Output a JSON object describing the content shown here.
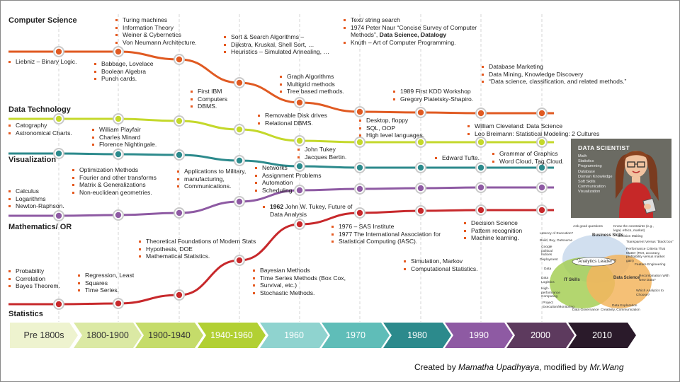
{
  "rows": {
    "computer_science": "Computer Science",
    "data_technology": "Data Technology",
    "visualization": "Visualization",
    "mathematics": "Mathematics/ OR",
    "statistics": "Statistics"
  },
  "eras": [
    "Pre 1800s",
    "1800-1900",
    "1900-1940",
    "1940-1960",
    "1960",
    "1970",
    "1980",
    "1990",
    "2000",
    "2010"
  ],
  "colors": {
    "computer_science": "#e05a22",
    "data_technology": "#c4d82b",
    "visualization": "#2c8a8c",
    "mathematics": "#8e5aa3",
    "statistics": "#c7282b",
    "bullet": "#e55a21"
  },
  "notes": {
    "cs_pre1800": [
      "Liebniz – Binary Logic."
    ],
    "cs_1800": [
      "Babbage, Lovelace",
      "Boolean Algebra",
      "Punch cards."
    ],
    "cs_1900": [
      "Turing machines",
      "Information Theory",
      "Weiner & Cybernetics",
      "Von Neumann Architecture."
    ],
    "cs_1940": [
      "First IBM",
      "Computers",
      "DBMS."
    ],
    "cs_1950": [
      "Sort & Search Algorithms –",
      "Dijkstra, Kruskal, Shell Sort, …",
      "Heuristics – Simulated Annealing, …"
    ],
    "cs_1960": [
      "Graph Algorithms",
      "Multigrid methods",
      "Tree based methods."
    ],
    "cs_1970_pre": "1974 Peter Naur “Concise Survey of Computer Methods”, ",
    "cs_1970_bold": "Data Science, Datalogy",
    "cs_1970": [
      "Text/ string search",
      "Knuth – Art of Computer Programming."
    ],
    "cs_1980": [
      "1989 First KDD Workshop",
      "Gregory Piatetsky-Shapiro."
    ],
    "cs_1990": [
      "Database Marketing",
      "Data Mining, Knowledge Discovery",
      "“Data science, classification, and related methods.”"
    ],
    "dt_pre1800": [
      "Catography",
      "Astronomical Charts."
    ],
    "dt_1800": [
      "William Playfair",
      "Charles Minard",
      "Florence Nightingale."
    ],
    "dt_1960": [
      "Removable Disk drives",
      "Relational DBMS."
    ],
    "dt_1970": [
      "Desktop, floppy",
      "SQL, OOP",
      "High level languages."
    ],
    "dt_2000": [
      "William Cleveland: Data Science",
      "Leo Breimann: Statistical Modeling: 2 Cultures"
    ],
    "vis_1960": [
      "John Tukey",
      "Jacques Bertin."
    ],
    "vis_1980": [
      "Edward Tufte."
    ],
    "vis_2000": [
      "Grammar of Graphics",
      "Word Cloud, Tag Cloud."
    ],
    "math_pre1800": [
      "Calculus",
      "Logarithms",
      "Newton-Raphson."
    ],
    "math_1800": [
      "Optimization Methods",
      "Fourier and other transforms",
      "Matrix & Generalizations",
      "Non-euclidean geometries."
    ],
    "math_1900": [
      "Applications to Military,",
      "manufacturing,",
      "Communications."
    ],
    "math_1940": [
      "Networks",
      "Assignment Problems",
      "Automation",
      "Scheduling"
    ],
    "stat_1962_bold": "1962",
    "stat_1962": " John W. Tukey, Future of Data Analysis",
    "stat_1970": [
      "1976 – SAS Institute",
      "1977 The International Association for",
      "Statistical Computing (IASC)."
    ],
    "stat_1990": [
      "Decision Science",
      "Pattern recognition",
      "Machine learning."
    ],
    "stat_1900": [
      "Theoretical Foundations of Modern Stats",
      "Hypothesis, DOE",
      "Mathematical Statistics."
    ],
    "stat_1980": [
      "Simulation, Markov",
      "Computational Statistics."
    ],
    "stat_1960": [
      "Bayesian Methods",
      "Time Series Methods (Box Cox,",
      "Survival, etc.)",
      "Stochastic Methods."
    ],
    "stat_pre1800": [
      "Probability",
      "Correlation",
      "Bayes Theorem."
    ],
    "stat_1800": [
      "Regression, Least",
      "Squares",
      "Time Series."
    ]
  },
  "data_scientist": {
    "title": "DATA SCIENTIST",
    "skills": [
      "Math",
      "Statistics",
      "Programming",
      "Database",
      "Domain Knowledge",
      "Soft Skills",
      "Communication",
      "Visualization"
    ]
  },
  "venn": {
    "business": "Business Skills",
    "it": "IT Skills",
    "ds": "Data Science",
    "leader": "\"Analytics Leader\"?",
    "labels": [
      "Ask good questions",
      "Know the constraints (e.g., legal, ethics, market)",
      "Latency of Execution?",
      "Decision Making",
      "Build, Buy, Outsource",
      "Transparent Versus \"black box\"",
      "Google political Indices",
      "Performance Criteria That Matter (ROI, accuracy, profitability versus market gain)",
      "Deployment",
      "Feature Engineering",
      "Data",
      "Data Logistics",
      "Recombination With New Data?",
      "High-performance Computing",
      "Which Analytics to Choose?",
      "Project Execution/Monitoring",
      "Data Exploration",
      "Data Governance",
      "Creativity, Communication"
    ]
  },
  "credit": {
    "prefix": "Created by ",
    "author": "Mamatha Upadhyaya",
    "mid": ", modified by ",
    "modifier": "Mr.Wang"
  }
}
